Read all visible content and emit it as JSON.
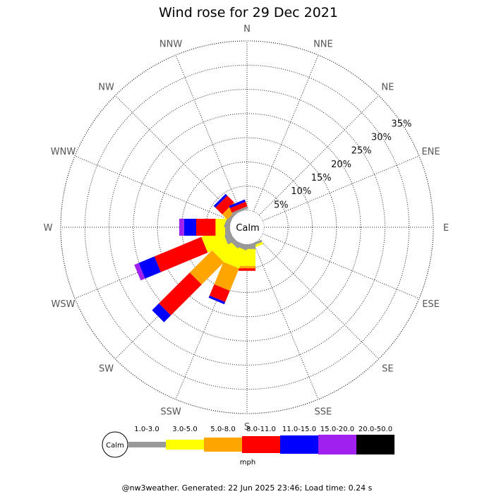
{
  "chart_data": {
    "type": "wind-rose",
    "title": "Wind rose for 29 Dec 2021",
    "center_label": "Calm",
    "directions": [
      "N",
      "NNE",
      "NE",
      "ENE",
      "E",
      "ESE",
      "SE",
      "SSE",
      "S",
      "SSW",
      "SW",
      "WSW",
      "W",
      "WNW",
      "NW",
      "NNW"
    ],
    "radial_ticks": [
      "5%",
      "10%",
      "15%",
      "20%",
      "25%",
      "30%",
      "35%"
    ],
    "radial_values": [
      5,
      10,
      15,
      20,
      25,
      30,
      35
    ],
    "radial_max": 35,
    "unit": "mph",
    "bins": [
      {
        "label": "1.0-3.0",
        "color": "#999999"
      },
      {
        "label": "3.0-5.0",
        "color": "#ffff00"
      },
      {
        "label": "5.0-8.0",
        "color": "#ffa500"
      },
      {
        "label": "8.0-11.0",
        "color": "#ff0000"
      },
      {
        "label": "11.0-15.0",
        "color": "#0000ff"
      },
      {
        "label": "15.0-20.0",
        "color": "#a020f0"
      },
      {
        "label": "20.0-50.0",
        "color": "#000000"
      }
    ],
    "series": [
      {
        "direction": "SSE",
        "values": [
          0.5,
          0.5,
          0,
          0,
          0,
          0,
          0
        ]
      },
      {
        "direction": "S",
        "values": [
          1.0,
          3.5,
          0.5,
          0.5,
          0,
          0,
          0
        ]
      },
      {
        "direction": "SSW",
        "values": [
          1.0,
          4.0,
          5.0,
          2.5,
          0.5,
          0,
          0
        ]
      },
      {
        "direction": "SW",
        "values": [
          1.0,
          4.0,
          6.5,
          9.0,
          2.0,
          0,
          0
        ]
      },
      {
        "direction": "WSW",
        "values": [
          1.5,
          4.5,
          0,
          10.5,
          3.5,
          1.0,
          0
        ]
      },
      {
        "direction": "W",
        "values": [
          1.0,
          2.0,
          0,
          4.0,
          2.5,
          1.0,
          0
        ]
      },
      {
        "direction": "WNW",
        "values": [
          1.0,
          0.5,
          0,
          0,
          0,
          0,
          0
        ]
      },
      {
        "direction": "NW",
        "values": [
          0.5,
          0,
          1.5,
          2.0,
          0.5,
          0,
          0
        ]
      },
      {
        "direction": "NNW",
        "values": [
          0.5,
          0,
          0,
          1.0,
          0.5,
          0,
          0
        ]
      }
    ]
  },
  "footer": "@nw3weather. Generated: 22 Jun 2025 23:46; Load time: 0.24 s"
}
